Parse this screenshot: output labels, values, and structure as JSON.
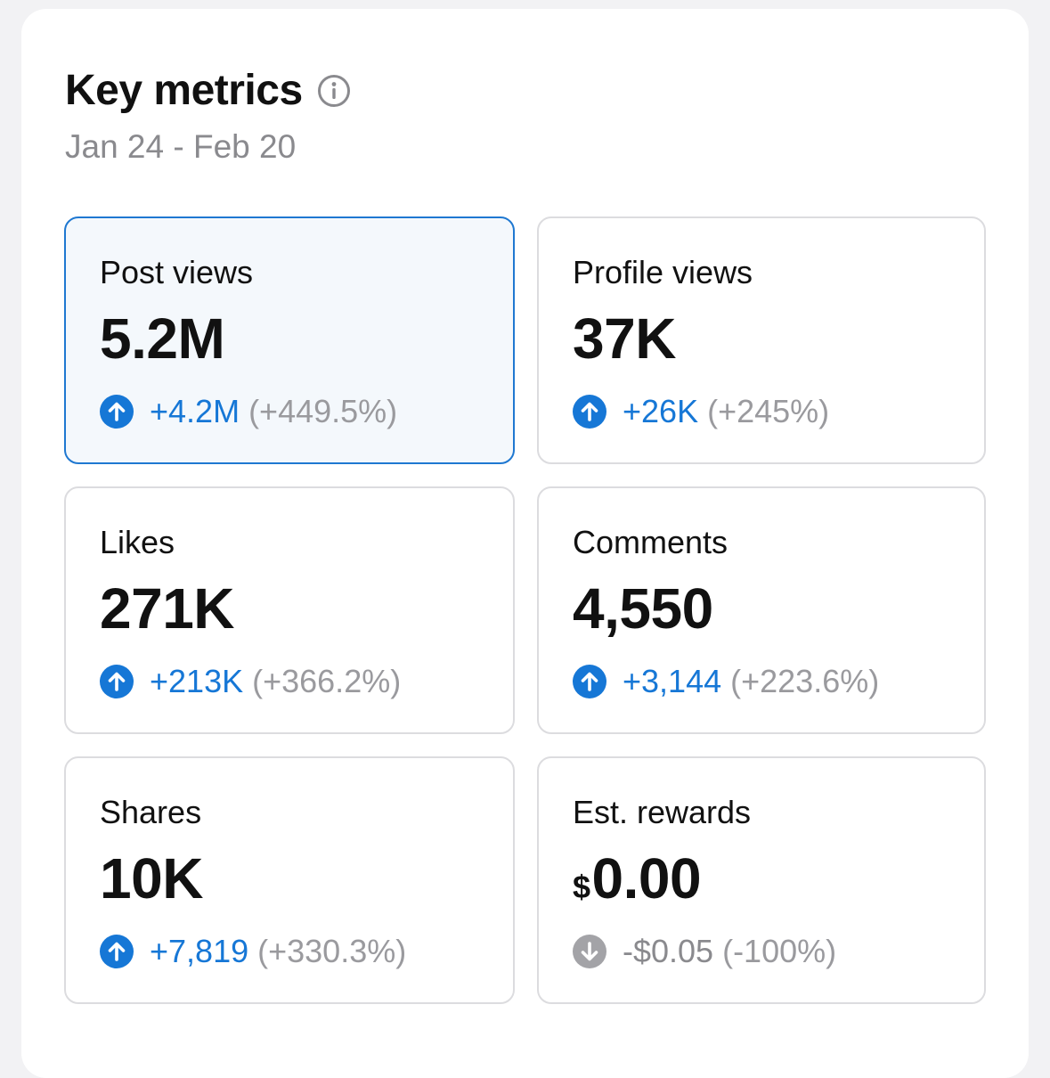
{
  "header": {
    "title": "Key metrics",
    "date_range": "Jan 24 - Feb 20"
  },
  "colors": {
    "accent": "#1677d6",
    "selected_border": "#1f78d1",
    "muted": "#9a9a9e"
  },
  "metrics": [
    {
      "label": "Post views",
      "value": "5.2M",
      "delta": "+4.2M",
      "pct": "(+449.5%)",
      "direction": "up",
      "selected": true
    },
    {
      "label": "Profile views",
      "value": "37K",
      "delta": "+26K",
      "pct": "(+245%)",
      "direction": "up"
    },
    {
      "label": "Likes",
      "value": "271K",
      "delta": "+213K",
      "pct": "(+366.2%)",
      "direction": "up"
    },
    {
      "label": "Comments",
      "value": "4,550",
      "delta": "+3,144",
      "pct": "(+223.6%)",
      "direction": "up"
    },
    {
      "label": "Shares",
      "value": "10K",
      "delta": "+7,819",
      "pct": "(+330.3%)",
      "direction": "up"
    },
    {
      "label": "Est. rewards",
      "currency": "$",
      "value": "0.00",
      "delta": "-$0.05",
      "pct": "(-100%)",
      "direction": "down"
    }
  ]
}
